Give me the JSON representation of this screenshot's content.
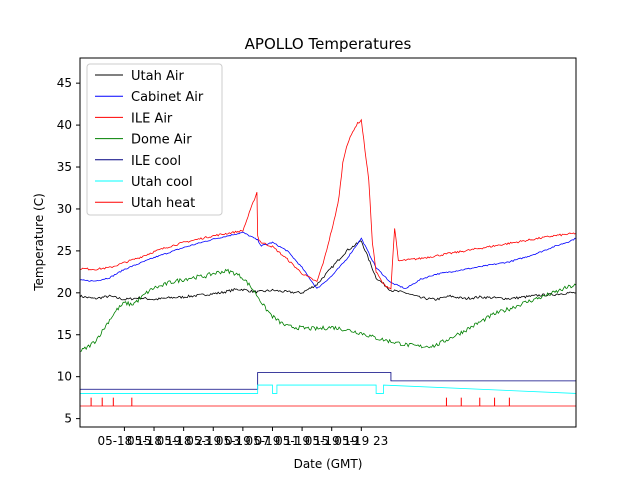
{
  "chart_data": {
    "type": "line",
    "title": "APOLLO Temperatures",
    "xlabel": "Date (GMT)",
    "ylabel": "Temperature (C)",
    "xlim": [
      0,
      67
    ],
    "ylim": [
      4,
      48
    ],
    "x_units": "hours since 2024-05-18 09:00 GMT",
    "yticks": [
      5,
      10,
      15,
      20,
      25,
      30,
      35,
      40,
      45
    ],
    "xticks": [
      {
        "x": 6,
        "label": "05-18 15"
      },
      {
        "x": 10,
        "label": "05-18 19"
      },
      {
        "x": 14,
        "label": "05-18 23"
      },
      {
        "x": 18,
        "label": "05-19 03"
      },
      {
        "x": 22,
        "label": "05-19 07"
      },
      {
        "x": 26,
        "label": "05-19 11"
      },
      {
        "x": 30,
        "label": "05-19 15"
      },
      {
        "x": 34,
        "label": "05-19 19"
      },
      {
        "x": 38,
        "label": "05-19 23"
      }
    ],
    "legend_position": "top-left",
    "series": [
      {
        "name": "Utah Air",
        "color": "#000000",
        "x": [
          0,
          2,
          4,
          6,
          8,
          10,
          12,
          14,
          16,
          18,
          19,
          20,
          21,
          22,
          23,
          24,
          26,
          28,
          30,
          32,
          34,
          36,
          38,
          40,
          42,
          44,
          46,
          48,
          50,
          52,
          54,
          56,
          58,
          60,
          62,
          64,
          66,
          67
        ],
        "y": [
          19.6,
          19.3,
          19.6,
          19.2,
          19.4,
          19.2,
          19.4,
          19.5,
          19.7,
          19.9,
          20.0,
          20.2,
          20.4,
          20.4,
          20.2,
          20.1,
          20.3,
          20.1,
          20.0,
          21.0,
          23.0,
          25.0,
          26.2,
          21.8,
          20.3,
          20.0,
          19.4,
          19.2,
          19.6,
          19.3,
          19.5,
          19.4,
          19.3,
          19.5,
          19.7,
          19.8,
          20.0,
          20.0
        ]
      },
      {
        "name": "Cabinet Air",
        "color": "#0000ff",
        "x": [
          0,
          2,
          4,
          6,
          8,
          10,
          12,
          14,
          16,
          18,
          20,
          22,
          24,
          24.5,
          26,
          28,
          30,
          32,
          34,
          36,
          38,
          40,
          42,
          44,
          46,
          48,
          50,
          52,
          54,
          56,
          58,
          60,
          62,
          64,
          66,
          67
        ],
        "y": [
          21.5,
          21.4,
          21.8,
          22.8,
          23.5,
          24.2,
          24.8,
          25.4,
          25.9,
          26.4,
          26.8,
          27.2,
          26.3,
          25.6,
          26.0,
          25.0,
          23.0,
          20.5,
          22.0,
          24.0,
          26.5,
          23.0,
          21.2,
          20.5,
          21.6,
          22.2,
          22.5,
          22.8,
          23.1,
          23.4,
          23.7,
          24.2,
          24.8,
          25.5,
          26.1,
          26.5
        ]
      },
      {
        "name": "ILE Air",
        "color": "#ff0000",
        "x": [
          0,
          2,
          4,
          6,
          8,
          10,
          12,
          14,
          16,
          18,
          20,
          22,
          23.9,
          24,
          24.2,
          24.5,
          26,
          28,
          30,
          32,
          33,
          34,
          34.5,
          35,
          35.5,
          36,
          36.5,
          37,
          37.5,
          38,
          38.5,
          39,
          39.5,
          40,
          41,
          42,
          42.5,
          43,
          44,
          46,
          48,
          50,
          52,
          54,
          56,
          58,
          60,
          62,
          64,
          66,
          67
        ],
        "y": [
          22.9,
          22.8,
          23.0,
          23.6,
          24.2,
          24.9,
          25.5,
          26.0,
          26.4,
          26.8,
          27.1,
          27.4,
          32.0,
          26.8,
          26.3,
          26.0,
          25.5,
          24.0,
          22.3,
          21.3,
          24.0,
          27.5,
          29.2,
          31.5,
          35.5,
          37.5,
          38.5,
          39.5,
          40.2,
          40.6,
          37.0,
          33.5,
          26.0,
          22.5,
          21.0,
          20.5,
          27.8,
          23.8,
          23.9,
          24.1,
          24.4,
          24.7,
          25.0,
          25.3,
          25.6,
          25.9,
          26.2,
          26.5,
          26.8,
          27.0,
          27.1
        ]
      },
      {
        "name": "Dome Air",
        "color": "#008000",
        "x": [
          0,
          1,
          2,
          3,
          4,
          5,
          6,
          7,
          8,
          9,
          10,
          11,
          12,
          13,
          14,
          15,
          16,
          17,
          18,
          19,
          20,
          21,
          22,
          23,
          24,
          25,
          26,
          27,
          28,
          30,
          32,
          34,
          36,
          38,
          40,
          42,
          44,
          46,
          48,
          50,
          52,
          54,
          56,
          58,
          60,
          62,
          64,
          66,
          67
        ],
        "y": [
          13.0,
          13.5,
          14.2,
          15.4,
          16.8,
          18.0,
          18.8,
          18.6,
          19.2,
          20.0,
          20.6,
          20.8,
          21.2,
          21.4,
          21.6,
          21.8,
          21.9,
          22.0,
          22.3,
          22.5,
          22.6,
          22.3,
          21.8,
          20.8,
          19.6,
          18.2,
          17.2,
          16.5,
          16.0,
          15.8,
          15.7,
          15.9,
          15.6,
          15.2,
          14.6,
          14.2,
          13.8,
          13.6,
          13.7,
          14.6,
          15.5,
          16.5,
          17.5,
          18.1,
          18.8,
          19.4,
          20.0,
          20.7,
          20.9
        ]
      },
      {
        "name": "ILE cool",
        "color": "#000080",
        "x": [
          0,
          24,
          24,
          42,
          42,
          67
        ],
        "y": [
          8.5,
          8.5,
          10.5,
          10.5,
          9.5,
          9.5
        ]
      },
      {
        "name": "Utah cool",
        "color": "#00ffff",
        "x": [
          0,
          24,
          24,
          26,
          26,
          26.6,
          26.6,
          33,
          33,
          40,
          40,
          41,
          41,
          67
        ],
        "y": [
          8.0,
          8.0,
          9.0,
          9.0,
          8.0,
          8.0,
          9.0,
          9.0,
          9.0,
          9.0,
          8.0,
          8.0,
          9.0,
          8.0
        ]
      },
      {
        "name": "Utah heat",
        "color": "#ff0000",
        "x": [
          0,
          67
        ],
        "y": [
          6.5,
          6.5
        ],
        "spikes": [
          1.5,
          3.0,
          4.5,
          7.0,
          49.5,
          51.5,
          54.0,
          56.0,
          58.0
        ],
        "spike_top": 7.5
      }
    ]
  }
}
